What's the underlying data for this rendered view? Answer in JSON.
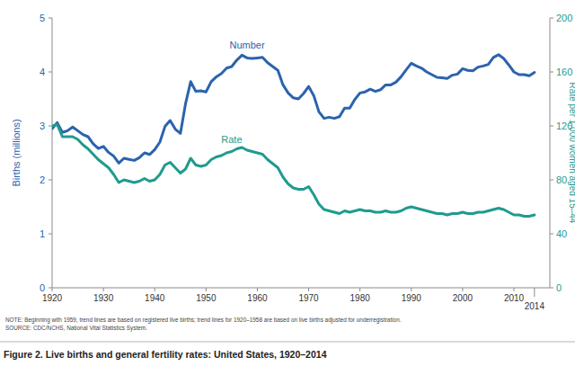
{
  "chart_data": {
    "type": "line",
    "title": "Figure 2. Live births and general fertility rates: United States, 1920–2014",
    "annotations": [
      "NOTE: Beginning with 1959, trend lines are based on registered live births; trend lines for 1920–1958 are based on live births adjusted for underregistration.",
      "SOURCE: CDC/NCHS, National Vital Statistics System."
    ],
    "y_label": "Births (millions)",
    "y2_label": "Rate per 1,000 women aged 15–44",
    "x": [
      1920,
      1921,
      1922,
      1923,
      1924,
      1925,
      1926,
      1927,
      1928,
      1929,
      1930,
      1931,
      1932,
      1933,
      1934,
      1935,
      1936,
      1937,
      1938,
      1939,
      1940,
      1941,
      1942,
      1943,
      1944,
      1945,
      1946,
      1947,
      1948,
      1949,
      1950,
      1951,
      1952,
      1953,
      1954,
      1955,
      1956,
      1957,
      1958,
      1959,
      1960,
      1961,
      1962,
      1963,
      1964,
      1965,
      1966,
      1967,
      1968,
      1969,
      1970,
      1971,
      1972,
      1973,
      1974,
      1975,
      1976,
      1977,
      1978,
      1979,
      1980,
      1981,
      1982,
      1983,
      1984,
      1985,
      1986,
      1987,
      1988,
      1989,
      1990,
      1991,
      1992,
      1993,
      1994,
      1995,
      1996,
      1997,
      1998,
      1999,
      2000,
      2001,
      2002,
      2003,
      2004,
      2005,
      2006,
      2007,
      2008,
      2009,
      2010,
      2011,
      2012,
      2013,
      2014
    ],
    "series": [
      {
        "name": "Number",
        "color": "#2b63ae",
        "axis": "y",
        "values": [
          2.95,
          3.06,
          2.88,
          2.91,
          2.98,
          2.91,
          2.84,
          2.8,
          2.67,
          2.58,
          2.62,
          2.51,
          2.44,
          2.31,
          2.4,
          2.38,
          2.36,
          2.41,
          2.5,
          2.47,
          2.56,
          2.7,
          2.99,
          3.1,
          2.94,
          2.86,
          3.41,
          3.82,
          3.64,
          3.65,
          3.63,
          3.82,
          3.91,
          3.97,
          4.07,
          4.1,
          4.22,
          4.31,
          4.26,
          4.25,
          4.26,
          4.27,
          4.17,
          4.1,
          4.03,
          3.76,
          3.61,
          3.52,
          3.5,
          3.6,
          3.73,
          3.56,
          3.26,
          3.14,
          3.16,
          3.14,
          3.17,
          3.33,
          3.33,
          3.49,
          3.61,
          3.63,
          3.68,
          3.64,
          3.67,
          3.76,
          3.76,
          3.81,
          3.91,
          4.04,
          4.16,
          4.11,
          4.07,
          4.0,
          3.95,
          3.9,
          3.89,
          3.88,
          3.94,
          3.96,
          4.06,
          4.03,
          4.02,
          4.09,
          4.11,
          4.14,
          4.27,
          4.32,
          4.25,
          4.13,
          4.0,
          3.95,
          3.95,
          3.93,
          3.99
        ]
      },
      {
        "name": "Rate",
        "color": "#1f9b8f",
        "axis": "y2",
        "values": [
          120,
          121,
          112,
          112,
          112,
          110,
          106,
          103,
          99,
          95,
          92,
          89,
          84,
          78,
          80,
          79,
          78,
          79,
          81,
          79,
          80,
          84,
          91,
          93,
          89,
          85,
          88,
          96,
          91,
          90,
          91,
          95,
          97,
          98,
          100,
          101,
          103,
          104,
          102,
          101,
          100,
          99,
          95,
          92,
          89,
          82,
          77,
          74,
          73,
          73,
          75,
          69,
          62,
          58,
          57,
          56,
          55,
          57,
          56,
          57,
          58,
          57,
          57,
          56,
          56,
          57,
          56,
          56,
          57,
          59,
          60,
          59,
          58,
          57,
          56,
          55,
          55,
          54,
          55,
          55,
          56,
          55,
          55,
          56,
          56,
          57,
          58,
          59,
          58,
          56,
          54,
          54,
          53,
          53,
          54
        ]
      }
    ],
    "xlim": [
      1920,
      2017
    ],
    "xticks": [
      1920,
      1930,
      1940,
      1950,
      1960,
      1970,
      1980,
      1990,
      2000,
      2010,
      2014
    ],
    "ylim": [
      0,
      5
    ],
    "yticks": [
      0,
      1,
      2,
      3,
      4,
      5
    ],
    "y2lim": [
      0,
      200
    ],
    "y2ticks": [
      0,
      40,
      80,
      120,
      160,
      200
    ],
    "grid": false
  }
}
